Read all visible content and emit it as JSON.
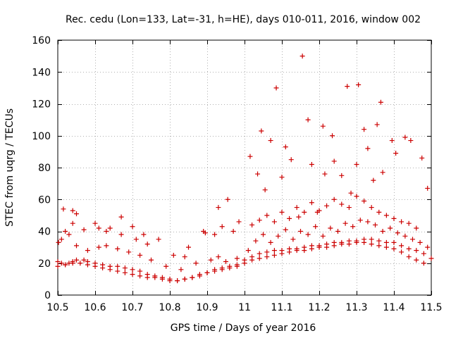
{
  "chart_data": {
    "type": "scatter",
    "title": "Rec. cedu (Lon=133, Lat=-31, h=HE), days 010-011, 2016, window 002",
    "xlabel": "GPS time / Days of year 2016",
    "ylabel": "STEC from uqrg / TECUs",
    "xlim": [
      10.5,
      11.5
    ],
    "ylim": [
      0,
      160
    ],
    "xticks": [
      10.5,
      10.6,
      10.7,
      10.8,
      10.9,
      11,
      11.1,
      11.2,
      11.3,
      11.4,
      11.5
    ],
    "xtick_labels": [
      "10.5",
      "10.6",
      "10.7",
      "10.8",
      "10.9",
      "11",
      "11.1",
      "11.2",
      "11.3",
      "11.4",
      "11.5"
    ],
    "yticks": [
      0,
      20,
      40,
      60,
      80,
      100,
      120,
      140,
      160
    ],
    "ytick_labels": [
      "0",
      "20",
      "40",
      "60",
      "80",
      "100",
      "120",
      "140",
      "160"
    ],
    "grid": true,
    "marker": "+",
    "series": [
      {
        "name": "STEC",
        "color": "#cc0000",
        "x": [
          10.5,
          10.51,
          10.52,
          10.53,
          10.54,
          10.55,
          10.57,
          10.58,
          10.6,
          10.62,
          10.64,
          10.66,
          10.68,
          10.7,
          10.72,
          10.74,
          10.76,
          10.78,
          10.8,
          10.82,
          10.84,
          10.86,
          10.88,
          10.9,
          10.92,
          10.94,
          10.96,
          10.98,
          11.0,
          11.02,
          11.04,
          11.06,
          11.08,
          11.1,
          11.12,
          11.14,
          11.16,
          11.18,
          11.2,
          11.22,
          11.24,
          11.26,
          11.28,
          11.3,
          11.32,
          11.34,
          11.36,
          11.38,
          11.4,
          11.42,
          11.44,
          11.46,
          11.48,
          11.5,
          10.5,
          10.52,
          10.54,
          10.56,
          10.58,
          10.6,
          10.62,
          10.64,
          10.66,
          10.68,
          10.7,
          10.72,
          10.74,
          10.76,
          10.78,
          10.8,
          10.82,
          10.84,
          10.86,
          10.88,
          10.9,
          10.92,
          10.94,
          10.96,
          10.98,
          11.0,
          11.02,
          11.04,
          11.06,
          11.08,
          11.1,
          11.12,
          11.14,
          11.16,
          11.18,
          11.2,
          11.22,
          11.24,
          11.26,
          11.28,
          11.3,
          11.32,
          11.34,
          11.36,
          11.38,
          11.4,
          11.42,
          11.44,
          11.46,
          11.48,
          10.51,
          10.53,
          10.55,
          10.58,
          10.61,
          10.63,
          10.66,
          10.69,
          10.72,
          10.75,
          10.79,
          10.83,
          10.87,
          10.91,
          10.93,
          10.95,
          10.98,
          11.01,
          11.03,
          11.05,
          11.07,
          11.09,
          11.11,
          11.13,
          11.15,
          11.17,
          11.19,
          11.21,
          11.23,
          11.25,
          11.27,
          11.29,
          11.31,
          11.33,
          11.35,
          11.37,
          11.39,
          11.41,
          11.43,
          11.45,
          11.47,
          11.49,
          10.52,
          10.54,
          10.57,
          10.6,
          10.63,
          10.67,
          10.71,
          10.74,
          10.81,
          10.85,
          10.89,
          10.92,
          10.94,
          10.97,
          11.02,
          11.04,
          11.06,
          11.08,
          11.1,
          11.12,
          11.14,
          11.16,
          11.18,
          11.2,
          11.22,
          11.24,
          11.26,
          11.28,
          11.3,
          11.32,
          11.34,
          11.36,
          11.38,
          11.4,
          11.42,
          11.44,
          11.46,
          10.502,
          10.515,
          10.54,
          10.55,
          10.61,
          10.64,
          10.67,
          10.7,
          10.73,
          10.77,
          10.84,
          10.895,
          10.93,
          10.955,
          10.985,
          11.015,
          11.035,
          11.045,
          11.055,
          11.07,
          11.085,
          11.1,
          11.11,
          11.125,
          11.145,
          11.155,
          11.17,
          11.18,
          11.195,
          11.21,
          11.215,
          11.235,
          11.24,
          11.26,
          11.275,
          11.285,
          11.3,
          11.305,
          11.32,
          11.33,
          11.345,
          11.355,
          11.365,
          11.37,
          11.395,
          11.405,
          11.43,
          11.445,
          11.475,
          11.49
        ],
        "y": [
          21,
          20,
          19,
          20,
          21,
          22,
          22,
          21,
          20,
          19,
          18,
          18,
          17,
          16,
          15,
          13,
          12,
          11,
          10,
          9,
          10,
          11,
          13,
          14,
          16,
          17,
          18,
          19,
          22,
          24,
          26,
          27,
          28,
          28,
          29,
          29,
          30,
          31,
          31,
          32,
          33,
          33,
          34,
          34,
          35,
          35,
          34,
          33,
          33,
          31,
          29,
          28,
          26,
          23,
          18,
          19,
          20,
          20,
          19,
          18,
          17,
          16,
          15,
          14,
          13,
          12,
          11,
          11,
          10,
          9,
          9,
          10,
          11,
          12,
          14,
          15,
          16,
          17,
          18,
          20,
          22,
          23,
          24,
          25,
          26,
          27,
          28,
          28,
          29,
          30,
          30,
          31,
          32,
          32,
          33,
          33,
          32,
          31,
          30,
          29,
          27,
          24,
          22,
          20,
          35,
          38,
          31,
          28,
          30,
          31,
          29,
          27,
          25,
          22,
          18,
          16,
          20,
          22,
          24,
          21,
          23,
          28,
          34,
          38,
          33,
          37,
          41,
          35,
          40,
          38,
          43,
          37,
          42,
          40,
          45,
          43,
          47,
          46,
          44,
          40,
          42,
          39,
          37,
          35,
          33,
          30,
          40,
          45,
          41,
          45,
          40,
          38,
          35,
          32,
          25,
          30,
          40,
          38,
          43,
          40,
          44,
          47,
          50,
          46,
          52,
          48,
          55,
          52,
          58,
          53,
          56,
          60,
          57,
          55,
          62,
          59,
          55,
          52,
          50,
          48,
          46,
          45,
          42,
          33,
          54,
          53,
          51,
          42,
          42,
          49,
          43,
          38,
          35,
          24,
          39,
          55,
          60,
          46,
          87,
          76,
          103,
          66,
          97,
          130,
          74,
          93,
          85,
          49,
          150,
          110,
          82,
          52,
          106,
          76,
          100,
          84,
          75,
          131,
          64,
          82,
          132,
          104,
          92,
          72,
          107,
          121,
          77,
          97,
          89,
          99,
          97,
          86,
          67
        ]
      }
    ]
  }
}
